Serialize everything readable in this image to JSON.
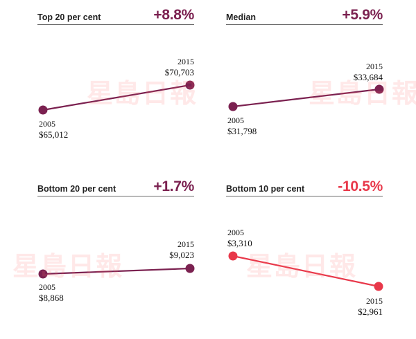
{
  "colors": {
    "positive": "#7b2150",
    "negative": "#e8384a",
    "axis_line": "#6b6b6b"
  },
  "watermark": {
    "text": "星島日報"
  },
  "chart_data": [
    {
      "type": "line",
      "title": "Top 20 per cent",
      "change": "+8.8%",
      "tone": "positive",
      "x": [
        2005,
        2015
      ],
      "values": [
        65012,
        70703
      ],
      "start_year": "2005",
      "start_value": "$65,012",
      "end_year": "2015",
      "end_value": "$70,703"
    },
    {
      "type": "line",
      "title": "Median",
      "change": "+5.9%",
      "tone": "positive",
      "x": [
        2005,
        2015
      ],
      "values": [
        31798,
        33684
      ],
      "start_year": "2005",
      "start_value": "$31,798",
      "end_year": "2015",
      "end_value": "$33,684"
    },
    {
      "type": "line",
      "title": "Bottom 20 per cent",
      "change": "+1.7%",
      "tone": "positive",
      "x": [
        2005,
        2015
      ],
      "values": [
        8868,
        9023
      ],
      "start_year": "2005",
      "start_value": "$8,868",
      "end_year": "2015",
      "end_value": "$9,023"
    },
    {
      "type": "line",
      "title": "Bottom 10 per cent",
      "change": "-10.5%",
      "tone": "negative",
      "x": [
        2005,
        2015
      ],
      "values": [
        3310,
        2961
      ],
      "start_year": "2005",
      "start_value": "$3,310",
      "end_year": "2015",
      "end_value": "$2,961"
    }
  ]
}
